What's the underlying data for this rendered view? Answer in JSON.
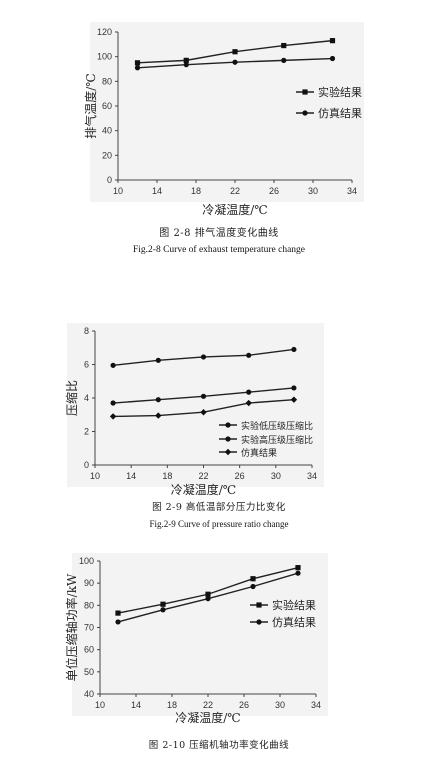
{
  "figures": [
    {
      "caption_cn": "图 2-8   排气温度变化曲线",
      "caption_en": "Fig.2-8    Curve of exhaust temperature change"
    },
    {
      "caption_cn": "图 2-9   高低温部分压力比变化",
      "caption_en": "Fig.2-9    Curve of pressure ratio change"
    },
    {
      "caption_cn": "图 2-10   压缩机轴功率变化曲线",
      "caption_en": ""
    }
  ],
  "chart_data": [
    {
      "type": "line",
      "title": "",
      "xlabel": "冷凝温度/℃",
      "ylabel": "排气温度/℃",
      "xlim": [
        10,
        34
      ],
      "ylim": [
        0,
        120
      ],
      "xticks": [
        10,
        14,
        18,
        22,
        26,
        30,
        34
      ],
      "yticks": [
        0,
        20,
        40,
        60,
        80,
        100,
        120
      ],
      "legend_position": "right",
      "series": [
        {
          "name": "实验结果",
          "marker": "square",
          "x": [
            12,
            17,
            22,
            27,
            32
          ],
          "y": [
            95,
            97,
            104,
            109,
            113
          ]
        },
        {
          "name": "仿真结果",
          "marker": "circle",
          "x": [
            12,
            17,
            22,
            27,
            32
          ],
          "y": [
            91,
            93.5,
            95.5,
            97,
            98.5
          ]
        }
      ]
    },
    {
      "type": "line",
      "title": "",
      "xlabel": "冷凝温度/℃",
      "ylabel": "压缩比",
      "xlim": [
        10,
        34
      ],
      "ylim": [
        0,
        8
      ],
      "xticks": [
        10,
        14,
        18,
        22,
        26,
        30,
        34
      ],
      "yticks": [
        0,
        2,
        4,
        6,
        8
      ],
      "legend_position": "bottom-right",
      "series": [
        {
          "name": "实验低压级压缩比",
          "marker": "circle",
          "x": [
            12,
            17,
            22,
            27,
            32
          ],
          "y": [
            5.95,
            6.25,
            6.45,
            6.55,
            6.9
          ]
        },
        {
          "name": "实验高压级压缩比",
          "marker": "circle",
          "x": [
            12,
            17,
            22,
            27,
            32
          ],
          "y": [
            3.7,
            3.9,
            4.1,
            4.35,
            4.6
          ]
        },
        {
          "name": "仿真结果",
          "marker": "diamond",
          "x": [
            12,
            17,
            22,
            27,
            32
          ],
          "y": [
            2.9,
            2.95,
            3.15,
            3.7,
            3.9
          ]
        }
      ]
    },
    {
      "type": "line",
      "title": "",
      "xlabel": "冷凝温度/℃",
      "ylabel": "单位压缩轴功率/kW",
      "xlim": [
        10,
        34
      ],
      "ylim": [
        40,
        100
      ],
      "xticks": [
        10,
        14,
        18,
        22,
        26,
        30,
        34
      ],
      "yticks": [
        40,
        50,
        60,
        70,
        80,
        90,
        100
      ],
      "legend_position": "right",
      "series": [
        {
          "name": "实验结果",
          "marker": "square",
          "x": [
            12,
            17,
            22,
            27,
            32
          ],
          "y": [
            76.5,
            80.5,
            85,
            92,
            97
          ]
        },
        {
          "name": "仿真结果",
          "marker": "circle",
          "x": [
            12,
            17,
            22,
            27,
            32
          ],
          "y": [
            72.5,
            78,
            83,
            88.5,
            94.5
          ]
        }
      ]
    }
  ]
}
